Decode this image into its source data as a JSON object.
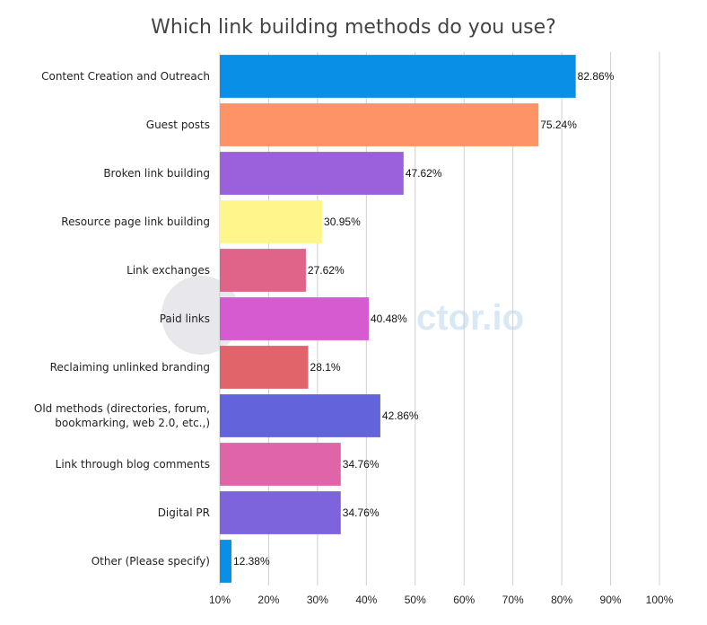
{
  "chart_data": {
    "type": "bar",
    "orientation": "horizontal",
    "title": "Which link building methods do you use?",
    "categories": [
      "Content Creation and Outreach",
      "Guest posts",
      "Broken link building",
      "Resource page link building",
      "Link exchanges",
      "Paid links",
      "Reclaiming unlinked branding",
      "Old methods (directories, forum, bookmarking, web 2.0, etc.,)",
      "Link through blog comments",
      "Digital PR",
      "Other (Please specify)"
    ],
    "values": [
      82.86,
      75.24,
      47.62,
      30.95,
      27.62,
      40.48,
      28.1,
      42.86,
      34.76,
      34.76,
      12.38
    ],
    "value_labels": [
      "82.86%",
      "75.24%",
      "47.62%",
      "30.95%",
      "27.62%",
      "40.48%",
      "28.1%",
      "42.86%",
      "34.76%",
      "34.76%",
      "12.38%"
    ],
    "colors": [
      "#0a8fe6",
      "#fe9365",
      "#9b61dc",
      "#fef68a",
      "#e0648a",
      "#d65ad0",
      "#e06469",
      "#6364dc",
      "#e065a8",
      "#7e64dc",
      "#0a8fe6"
    ],
    "xlim": [
      10,
      100
    ],
    "xticks": [
      10,
      20,
      30,
      40,
      50,
      60,
      70,
      80,
      90,
      100
    ],
    "xtick_labels": [
      "10%",
      "20%",
      "30%",
      "40%",
      "50%",
      "60%",
      "70%",
      "80%",
      "90%",
      "100%"
    ],
    "grid": "vertical",
    "xlabel": "",
    "ylabel": ""
  },
  "watermark": {
    "text": "ctor.io"
  }
}
